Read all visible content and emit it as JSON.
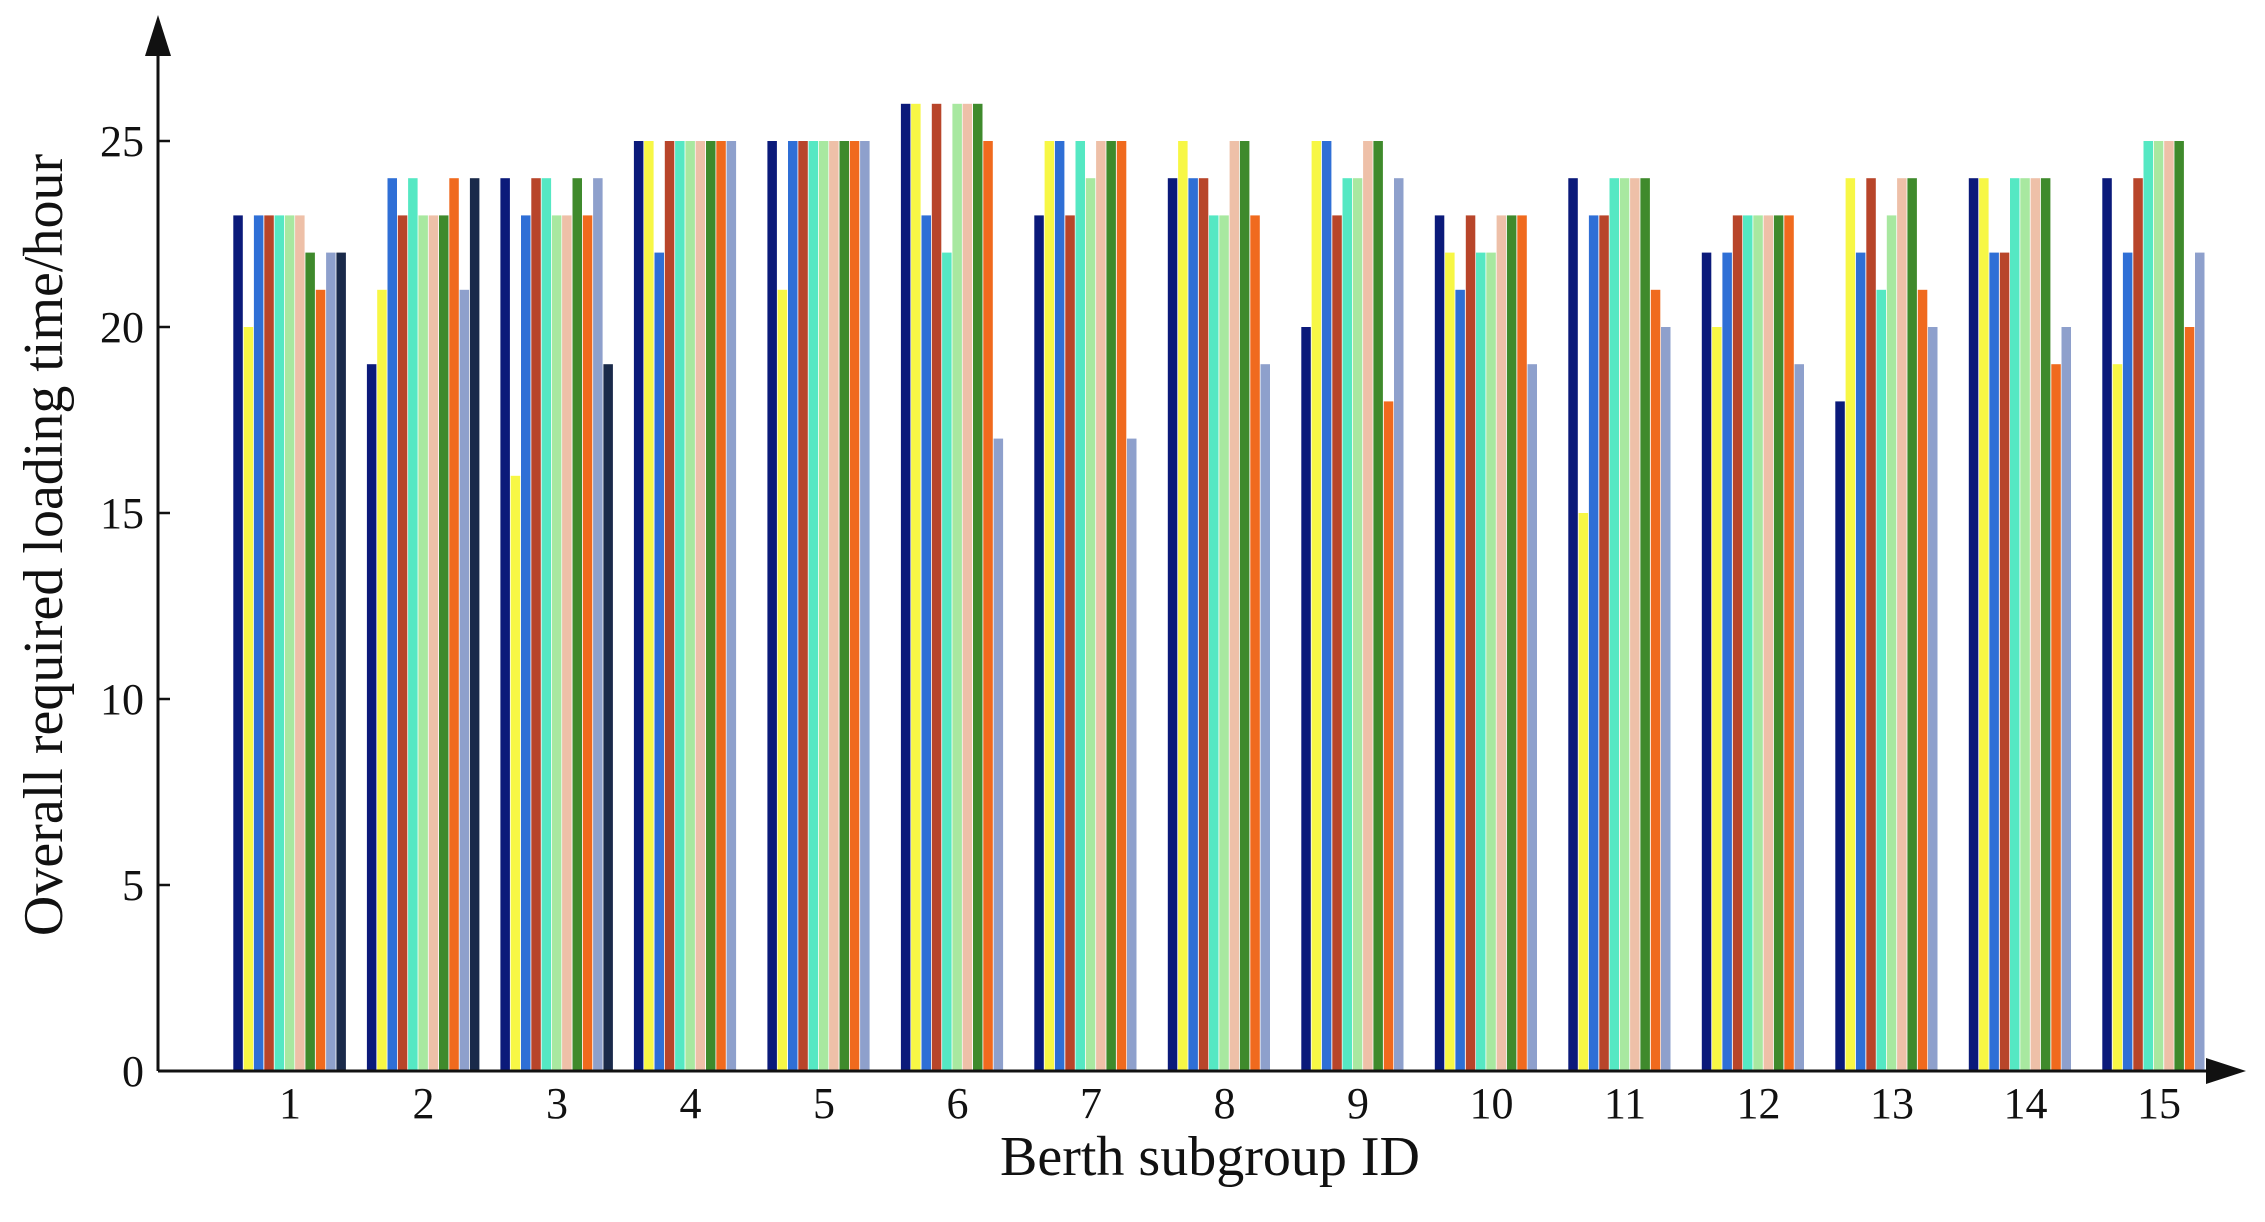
{
  "chart_data": {
    "type": "bar",
    "title": "",
    "xlabel": "Berth subgroup ID",
    "ylabel": "Overall required loading time/hour",
    "categories": [
      "1",
      "2",
      "3",
      "4",
      "5",
      "6",
      "7",
      "8",
      "9",
      "10",
      "11",
      "12",
      "13",
      "14",
      "15"
    ],
    "ylim": [
      0,
      27
    ],
    "yticks": [
      0,
      5,
      10,
      15,
      20,
      25
    ],
    "grid": false,
    "legend": "none",
    "series": [
      {
        "color": "#0b1a7a",
        "values": [
          23,
          19,
          24,
          25,
          25,
          26,
          23,
          24,
          20,
          23,
          24,
          22,
          18,
          24,
          24
        ]
      },
      {
        "color": "#f7f745",
        "values": [
          20,
          21,
          16,
          25,
          21,
          26,
          25,
          25,
          25,
          22,
          15,
          20,
          24,
          24,
          19
        ]
      },
      {
        "color": "#2f6fd6",
        "values": [
          23,
          24,
          23,
          22,
          25,
          23,
          25,
          24,
          25,
          21,
          23,
          22,
          22,
          22,
          22
        ]
      },
      {
        "color": "#b8452a",
        "values": [
          23,
          23,
          24,
          25,
          25,
          26,
          23,
          24,
          23,
          23,
          23,
          23,
          24,
          22,
          24
        ]
      },
      {
        "color": "#55e8c3",
        "values": [
          23,
          24,
          24,
          25,
          25,
          22,
          25,
          23,
          24,
          22,
          24,
          23,
          21,
          24,
          25
        ]
      },
      {
        "color": "#a8e8a0",
        "values": [
          23,
          23,
          23,
          25,
          25,
          26,
          24,
          23,
          24,
          22,
          24,
          23,
          23,
          24,
          25
        ]
      },
      {
        "color": "#eec0a8",
        "values": [
          23,
          23,
          23,
          25,
          25,
          26,
          25,
          25,
          25,
          23,
          24,
          23,
          24,
          24,
          25
        ]
      },
      {
        "color": "#3f8a2c",
        "values": [
          22,
          23,
          24,
          25,
          25,
          26,
          25,
          25,
          25,
          23,
          24,
          23,
          24,
          24,
          25
        ]
      },
      {
        "color": "#f06a1e",
        "values": [
          21,
          24,
          23,
          25,
          25,
          25,
          25,
          23,
          18,
          23,
          21,
          23,
          21,
          19,
          20
        ]
      },
      {
        "color": "#8ea0cc",
        "values": [
          22,
          21,
          24,
          25,
          25,
          17,
          17,
          19,
          24,
          19,
          20,
          19,
          20,
          20,
          22
        ]
      },
      {
        "color": "#1a2a4a",
        "values": [
          22,
          24,
          19,
          null,
          null,
          null,
          null,
          null,
          null,
          null,
          null,
          null,
          null,
          null,
          null
        ]
      }
    ]
  }
}
